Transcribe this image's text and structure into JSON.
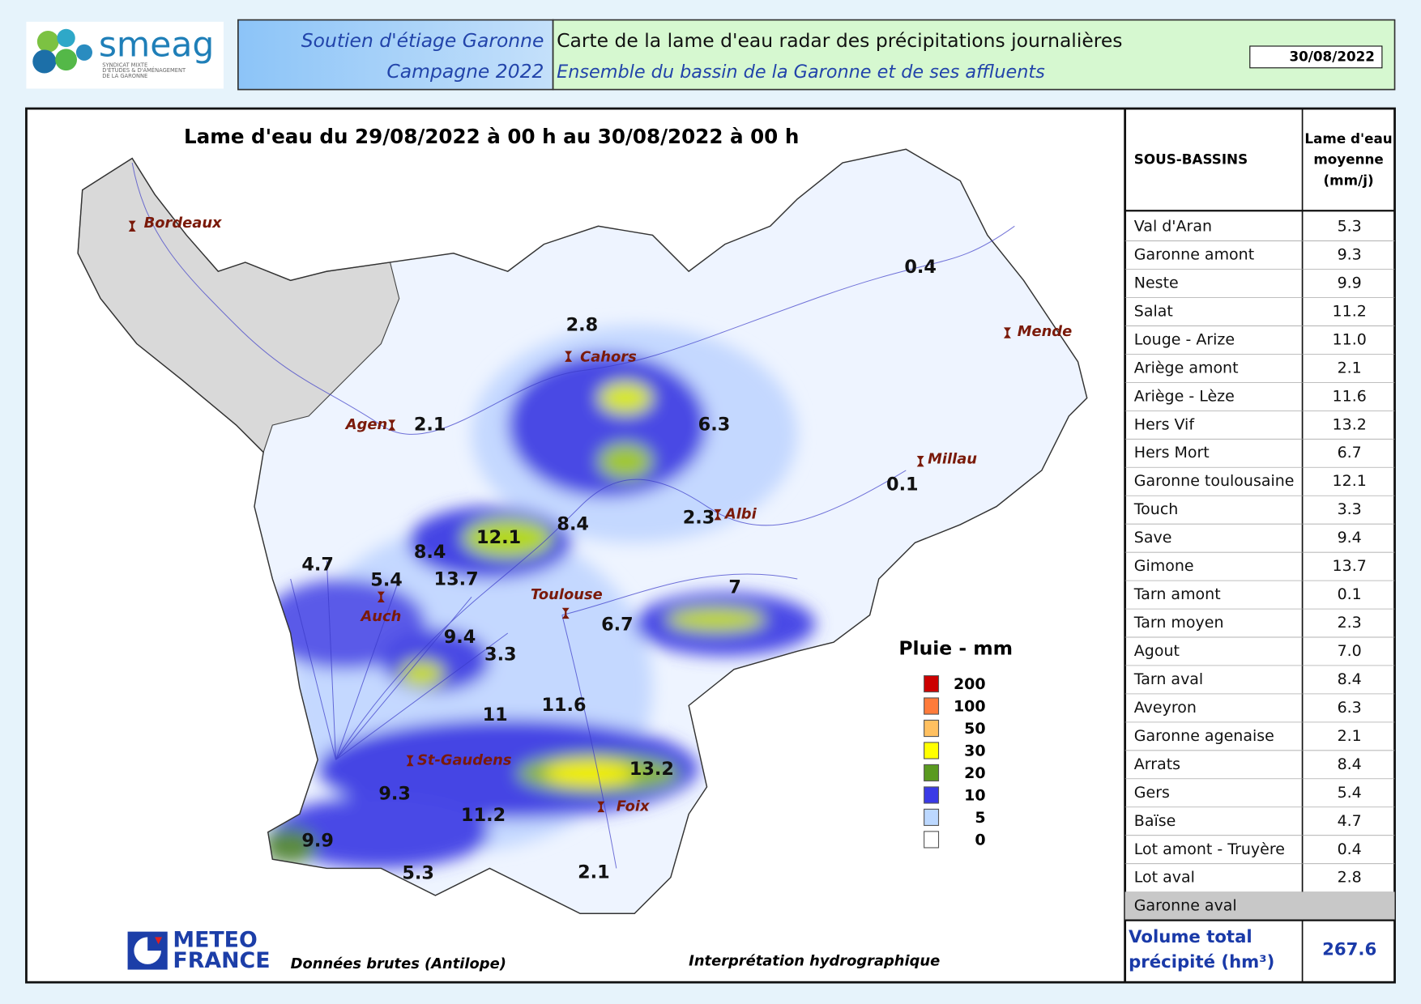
{
  "header": {
    "logo": "smeag",
    "logo_sub": [
      "SYNDICAT MIXTE",
      "D'ÉTUDES & D'AMÉNAGEMENT",
      "DE LA GARONNE"
    ],
    "left": [
      "Soutien d'étiage Garonne",
      "Campagne 2022"
    ],
    "right": [
      "Carte de la lame d'eau radar des précipitations journalières",
      "Ensemble du bassin de la Garonne et de ses affluents"
    ],
    "date": "30/08/2022"
  },
  "map": {
    "title": "Lame d'eau du 29/08/2022 à 00 h au 30/08/2022 à 00 h",
    "cities": [
      "Bordeaux",
      "Cahors",
      "Mende",
      "Agen",
      "Millau",
      "Albi",
      "Toulouse",
      "Auch",
      "St-Gaudens",
      "Foix"
    ],
    "values": [
      "0.4",
      "2.8",
      "6.3",
      "2.1",
      "0.1",
      "2.3",
      "8.4",
      "12.1",
      "8.4",
      "4.7",
      "5.4",
      "13.7",
      "7",
      "6.7",
      "9.4",
      "3.3",
      "11.6",
      "11",
      "13.2",
      "9.3",
      "11.2",
      "9.9",
      "5.3",
      "2.1"
    ],
    "legend": {
      "title": "Pluie - mm",
      "classes": [
        {
          "label": 200,
          "color": "#cc0000"
        },
        {
          "label": 100,
          "color": "#ff7b3a"
        },
        {
          "label": 50,
          "color": "#ffc060"
        },
        {
          "label": 30,
          "color": "#ffff00"
        },
        {
          "label": 20,
          "color": "#5a9a20"
        },
        {
          "label": 10,
          "color": "#3a3ae6"
        },
        {
          "label": 5,
          "color": "#bcd8ff"
        },
        {
          "label": 0,
          "color": "#ffffff"
        }
      ]
    },
    "source_logo": [
      "METEO",
      "FRANCE"
    ],
    "source": "Données brutes (Antilope)",
    "interpretation": "Interprétation hydrographique"
  },
  "table": {
    "headers": [
      "SOUS-BASSINS",
      [
        "Lame d'eau",
        "moyenne",
        "(mm/j)"
      ]
    ],
    "rows": [
      {
        "name": "Val d'Aran",
        "value": "5.3"
      },
      {
        "name": "Garonne amont",
        "value": "9.3"
      },
      {
        "name": "Neste",
        "value": "9.9"
      },
      {
        "name": "Salat",
        "value": "11.2"
      },
      {
        "name": "Louge - Arize",
        "value": "11.0"
      },
      {
        "name": "Ariège amont",
        "value": "2.1"
      },
      {
        "name": "Ariège - Lèze",
        "value": "11.6"
      },
      {
        "name": "Hers Vif",
        "value": "13.2"
      },
      {
        "name": "Hers Mort",
        "value": "6.7"
      },
      {
        "name": "Garonne toulousaine",
        "value": "12.1"
      },
      {
        "name": "Touch",
        "value": "3.3"
      },
      {
        "name": "Save",
        "value": "9.4"
      },
      {
        "name": "Gimone",
        "value": "13.7"
      },
      {
        "name": "Tarn amont",
        "value": "0.1"
      },
      {
        "name": "Tarn moyen",
        "value": "2.3"
      },
      {
        "name": "Agout",
        "value": "7.0"
      },
      {
        "name": "Tarn aval",
        "value": "8.4"
      },
      {
        "name": "Aveyron",
        "value": "6.3"
      },
      {
        "name": "Garonne agenaise",
        "value": "2.1"
      },
      {
        "name": "Arrats",
        "value": "8.4"
      },
      {
        "name": "Gers",
        "value": "5.4"
      },
      {
        "name": "Baïse",
        "value": "4.7"
      },
      {
        "name": "Lot amont - Truyère",
        "value": "0.4"
      },
      {
        "name": "Lot aval",
        "value": "2.8"
      },
      {
        "name": "Garonne aval"
      }
    ],
    "total": {
      "label": [
        "Volume total",
        "précipité (hm³)"
      ],
      "value": "267.6"
    }
  }
}
